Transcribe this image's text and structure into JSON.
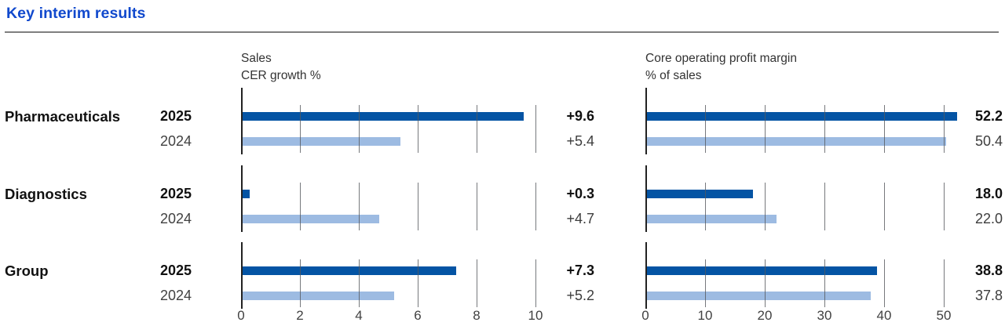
{
  "title": "Key interim results",
  "colors": {
    "title_blue": "#1149cd",
    "rule_gray": "#7f7f7f",
    "gridline": "#55585c",
    "baseline": "#222222",
    "bar_2025": "#0454a4",
    "bar_2024": "#9dbbe2"
  },
  "chart_data": [
    {
      "type": "bar",
      "orientation": "horizontal",
      "title": "Sales",
      "subtitle": "CER growth %",
      "categories": [
        "Pharmaceuticals",
        "Diagnostics",
        "Group"
      ],
      "series": [
        {
          "name": "2025",
          "values": [
            9.6,
            0.3,
            7.3
          ],
          "labels": [
            "+9.6",
            "+0.3",
            "+7.3"
          ],
          "emphasis": true
        },
        {
          "name": "2024",
          "values": [
            5.4,
            4.7,
            5.2
          ],
          "labels": [
            "+5.4",
            "+4.7",
            "+5.2"
          ],
          "emphasis": false
        }
      ],
      "xlim": [
        0,
        10
      ],
      "ticks": [
        0,
        2,
        4,
        6,
        8,
        10
      ],
      "grid": true,
      "legend": "none"
    },
    {
      "type": "bar",
      "orientation": "horizontal",
      "title": "Core operating profit margin",
      "subtitle": "% of sales",
      "categories": [
        "Pharmaceuticals",
        "Diagnostics",
        "Group"
      ],
      "series": [
        {
          "name": "2025",
          "values": [
            52.2,
            18.0,
            38.8
          ],
          "labels": [
            "52.2",
            "18.0",
            "38.8"
          ],
          "emphasis": true
        },
        {
          "name": "2024",
          "values": [
            50.4,
            22.0,
            37.8
          ],
          "labels": [
            "50.4",
            "22.0",
            "37.8"
          ],
          "emphasis": false
        }
      ],
      "xlim": [
        0,
        50
      ],
      "ticks": [
        0,
        10,
        20,
        30,
        40,
        50
      ],
      "grid": true,
      "legend": "none"
    }
  ]
}
